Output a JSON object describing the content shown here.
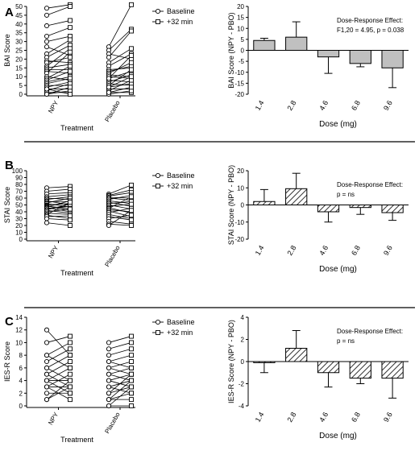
{
  "chart_data": [
    {
      "panel_letter": "A",
      "type": "scatter",
      "ylabel": "BAI Score",
      "xlabel": "Treatment",
      "categories": [
        "NPY",
        "Placebo"
      ],
      "ylim": [
        0,
        50
      ],
      "yticks": [
        0,
        5,
        10,
        15,
        20,
        25,
        30,
        35,
        40,
        45,
        50
      ],
      "legend": [
        "Baseline",
        "+32 min"
      ],
      "pairs": [
        {
          "category": "NPY",
          "series": "paired",
          "values": [
            [
              49,
              51
            ],
            [
              45,
              50
            ],
            [
              39,
              42
            ],
            [
              33,
              38
            ],
            [
              30,
              33
            ],
            [
              27,
              22
            ],
            [
              23,
              31
            ],
            [
              21,
              28
            ],
            [
              19,
              18
            ],
            [
              18,
              21
            ],
            [
              16,
              26
            ],
            [
              15,
              17
            ],
            [
              14,
              14
            ],
            [
              13,
              12
            ],
            [
              12,
              24
            ],
            [
              10,
              8
            ],
            [
              9,
              16
            ],
            [
              8,
              13
            ],
            [
              7,
              10
            ],
            [
              6,
              9
            ],
            [
              5,
              5
            ],
            [
              4,
              7
            ],
            [
              3,
              3
            ],
            [
              2,
              6
            ],
            [
              1,
              1
            ],
            [
              0,
              2
            ],
            [
              0,
              4
            ],
            [
              3,
              0
            ]
          ]
        },
        {
          "category": "Placebo",
          "series": "paired",
          "values": [
            [
              27,
              51
            ],
            [
              25,
              37
            ],
            [
              23,
              20
            ],
            [
              21,
              36
            ],
            [
              18,
              26
            ],
            [
              16,
              23
            ],
            [
              14,
              15
            ],
            [
              13,
              16
            ],
            [
              12,
              18
            ],
            [
              11,
              10
            ],
            [
              10,
              9
            ],
            [
              9,
              13
            ],
            [
              8,
              7
            ],
            [
              7,
              11
            ],
            [
              6,
              5
            ],
            [
              5,
              14
            ],
            [
              4,
              6
            ],
            [
              3,
              3
            ],
            [
              2,
              8
            ],
            [
              1,
              1
            ],
            [
              0,
              2
            ],
            [
              1,
              4
            ],
            [
              4,
              10
            ],
            [
              9,
              22
            ]
          ]
        }
      ]
    },
    {
      "panel_letter": "A",
      "type": "bar",
      "ylabel": "BAI Score (NPY - PBO)",
      "xlabel": "Dose (mg)",
      "categories": [
        "1.4",
        "2.8",
        "4.6",
        "6.8",
        "9.6"
      ],
      "values": [
        4.5,
        6.0,
        -3.0,
        -6.0,
        -8.0
      ],
      "errors": [
        1.0,
        7.0,
        7.5,
        1.5,
        9.0
      ],
      "ylim": [
        -20,
        20
      ],
      "yticks": [
        -20,
        -15,
        -10,
        -5,
        0,
        5,
        10,
        15,
        20
      ],
      "fill": "gray",
      "annotation": [
        "Dose-Response Effect:",
        "F1,20 = 4.95, p = 0.038"
      ]
    },
    {
      "panel_letter": "B",
      "type": "scatter",
      "ylabel": "STAI Score",
      "xlabel": "Treatment",
      "categories": [
        "NPY",
        "Placebo"
      ],
      "ylim": [
        0,
        100
      ],
      "yticks": [
        0,
        10,
        20,
        30,
        40,
        50,
        60,
        70,
        80,
        90,
        100
      ],
      "legend": [
        "Baseline",
        "+32 min"
      ],
      "pairs": [
        {
          "category": "NPY",
          "series": "paired",
          "values": [
            [
              75,
              77
            ],
            [
              70,
              73
            ],
            [
              66,
              68
            ],
            [
              62,
              65
            ],
            [
              60,
              58
            ],
            [
              58,
              62
            ],
            [
              56,
              50
            ],
            [
              55,
              55
            ],
            [
              53,
              60
            ],
            [
              52,
              47
            ],
            [
              50,
              52
            ],
            [
              49,
              42
            ],
            [
              48,
              45
            ],
            [
              47,
              56
            ],
            [
              46,
              40
            ],
            [
              45,
              48
            ],
            [
              43,
              51
            ],
            [
              42,
              38
            ],
            [
              40,
              44
            ],
            [
              38,
              36
            ],
            [
              36,
              54
            ],
            [
              35,
              30
            ],
            [
              33,
              34
            ],
            [
              30,
              28
            ],
            [
              24,
              20
            ]
          ]
        },
        {
          "category": "Placebo",
          "series": "paired",
          "values": [
            [
              66,
              79
            ],
            [
              64,
              72
            ],
            [
              63,
              68
            ],
            [
              61,
              60
            ],
            [
              60,
              57
            ],
            [
              58,
              64
            ],
            [
              56,
              52
            ],
            [
              54,
              48
            ],
            [
              52,
              55
            ],
            [
              50,
              44
            ],
            [
              48,
              51
            ],
            [
              46,
              38
            ],
            [
              45,
              62
            ],
            [
              43,
              40
            ],
            [
              41,
              33
            ],
            [
              39,
              45
            ],
            [
              36,
              30
            ],
            [
              33,
              28
            ],
            [
              30,
              35
            ],
            [
              26,
              22
            ],
            [
              22,
              20
            ],
            [
              20,
              42
            ]
          ]
        }
      ]
    },
    {
      "panel_letter": "B",
      "type": "bar",
      "ylabel": "STAI Score (NPY - PBO)",
      "xlabel": "Dose (mg)",
      "categories": [
        "1.4",
        "2.8",
        "4.6",
        "6.8",
        "9.6"
      ],
      "values": [
        2.0,
        9.5,
        -4.0,
        -1.5,
        -4.5
      ],
      "errors": [
        7.0,
        9.0,
        6.0,
        4.0,
        4.5
      ],
      "ylim": [
        -20,
        20
      ],
      "yticks": [
        -20,
        -10,
        0,
        10,
        20
      ],
      "fill": "hatched",
      "annotation": [
        "Dose-Response Effect:",
        "p = ns"
      ]
    },
    {
      "panel_letter": "C",
      "type": "scatter",
      "ylabel": "IES-R Score",
      "xlabel": "Treatment",
      "categories": [
        "NPY",
        "Placebo"
      ],
      "ylim": [
        0,
        14
      ],
      "yticks": [
        0,
        2,
        4,
        6,
        8,
        10,
        12,
        14
      ],
      "legend": [
        "Baseline",
        "+32 min"
      ],
      "pairs": [
        {
          "category": "NPY",
          "series": "paired",
          "values": [
            [
              12,
              8
            ],
            [
              10,
              11
            ],
            [
              8,
              10
            ],
            [
              8,
              6
            ],
            [
              7,
              9
            ],
            [
              6,
              8
            ],
            [
              6,
              4
            ],
            [
              5,
              7
            ],
            [
              5,
              3
            ],
            [
              4,
              6
            ],
            [
              4,
              4
            ],
            [
              4,
              2
            ],
            [
              3,
              5
            ],
            [
              3,
              3
            ],
            [
              3,
              1
            ],
            [
              2,
              2
            ],
            [
              1,
              3
            ],
            [
              1,
              4
            ]
          ]
        },
        {
          "category": "Placebo",
          "series": "paired",
          "values": [
            [
              10,
              11
            ],
            [
              9,
              10
            ],
            [
              8,
              9
            ],
            [
              7,
              8
            ],
            [
              7,
              6
            ],
            [
              6,
              7
            ],
            [
              6,
              5
            ],
            [
              5,
              4
            ],
            [
              5,
              6
            ],
            [
              4,
              5
            ],
            [
              4,
              3
            ],
            [
              3,
              4
            ],
            [
              3,
              2
            ],
            [
              2,
              3
            ],
            [
              2,
              5
            ],
            [
              1,
              2
            ],
            [
              1,
              1
            ],
            [
              0,
              0
            ],
            [
              0,
              3
            ],
            [
              1,
              4
            ]
          ]
        }
      ]
    },
    {
      "panel_letter": "C",
      "type": "bar",
      "ylabel": "IES-R Score (NPY - PBO)",
      "xlabel": "Dose (mg)",
      "categories": [
        "1.4",
        "2.8",
        "4.6",
        "6.8",
        "9.6"
      ],
      "values": [
        -0.1,
        1.2,
        -1.0,
        -1.5,
        -1.5
      ],
      "errors": [
        0.9,
        1.6,
        1.3,
        0.5,
        1.8
      ],
      "ylim": [
        -4,
        4
      ],
      "yticks": [
        -4,
        -2,
        0,
        2,
        4
      ],
      "fill": "hatched",
      "annotation": [
        "Dose-Response Effect:",
        "p = ns"
      ]
    }
  ]
}
